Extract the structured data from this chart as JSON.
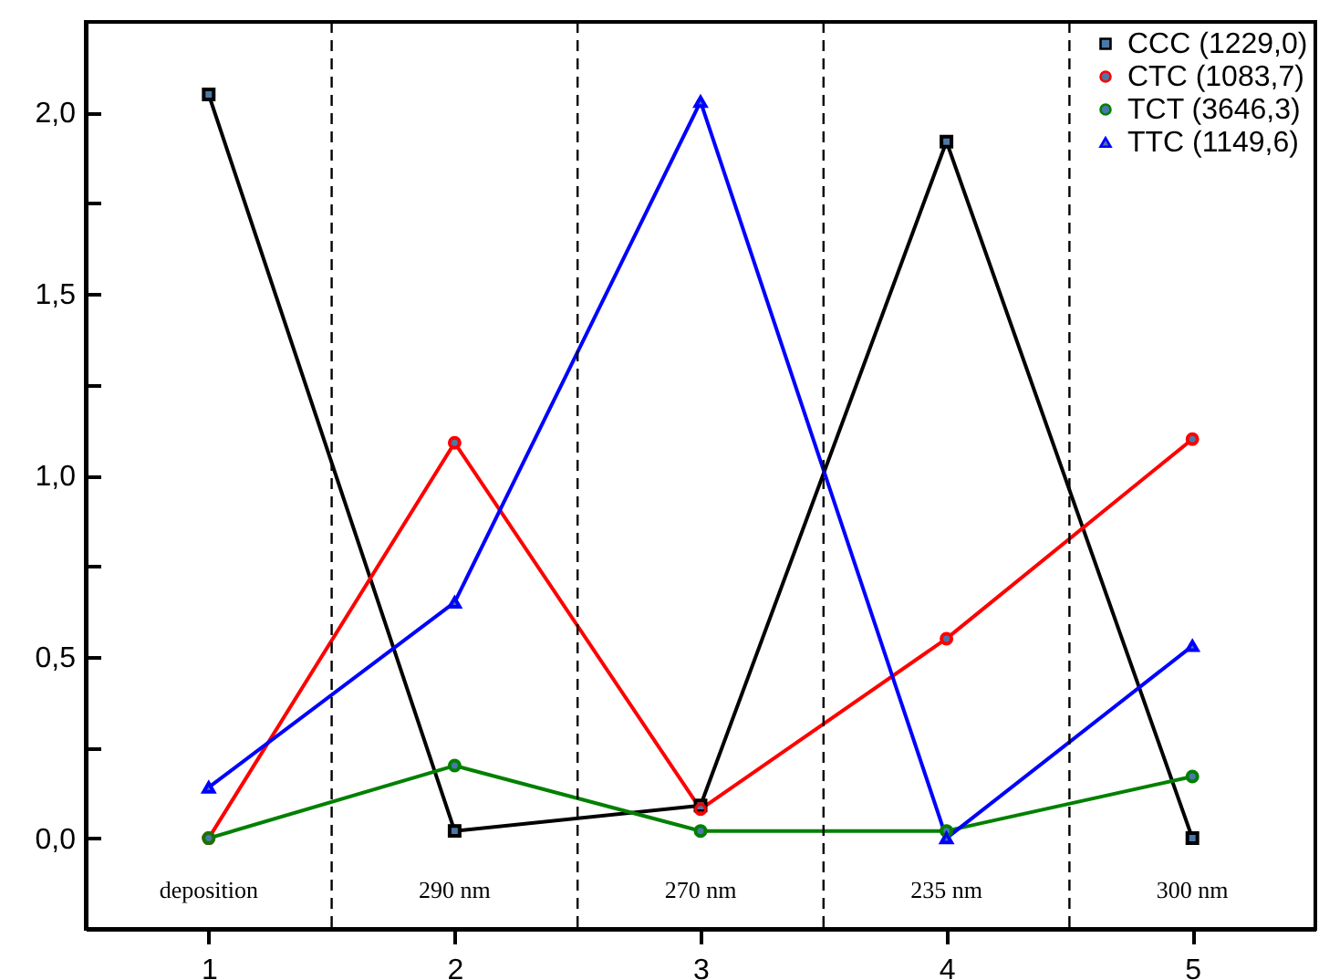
{
  "chart_data": {
    "type": "line",
    "x": [
      1,
      2,
      3,
      4,
      5
    ],
    "series": [
      {
        "name": "CCC (1229,0)",
        "color": "#000000",
        "marker": "square",
        "values": [
          2.05,
          0.02,
          0.09,
          1.92,
          0.0
        ]
      },
      {
        "name": "CTC (1083,7)",
        "color": "#ff0000",
        "marker": "circle",
        "values": [
          0.0,
          1.09,
          0.08,
          0.55,
          1.1
        ]
      },
      {
        "name": "TCT (3646,3)",
        "color": "#008000",
        "marker": "circle",
        "values": [
          0.0,
          0.2,
          0.02,
          0.02,
          0.17
        ]
      },
      {
        "name": "TTC (1149,6)",
        "color": "#0000ff",
        "marker": "triangle",
        "values": [
          0.14,
          0.65,
          2.03,
          0.0,
          0.53
        ]
      }
    ],
    "xlim": [
      0.5,
      5.5
    ],
    "xticks": [
      1,
      2,
      3,
      4,
      5
    ],
    "ylim": [
      -0.25,
      2.25
    ],
    "yticks": [
      {
        "value": 0,
        "label": "0,0"
      },
      {
        "value": 0.25,
        "label": null
      },
      {
        "value": 0.5,
        "label": "0,5"
      },
      {
        "value": 0.75,
        "label": null
      },
      {
        "value": 1,
        "label": "1,0"
      },
      {
        "value": 1.25,
        "label": null
      },
      {
        "value": 1.5,
        "label": "1,5"
      },
      {
        "value": 1.75,
        "label": null
      },
      {
        "value": 2,
        "label": "2,0"
      }
    ],
    "ref_lines": [
      {
        "axis": "x",
        "value": 1.5,
        "line_style": "dashed",
        "color": "#000000"
      },
      {
        "axis": "x",
        "value": 2.5,
        "line_style": "dashed",
        "color": "#000000"
      },
      {
        "axis": "x",
        "value": 3.5,
        "line_style": "dashed",
        "color": "#000000"
      },
      {
        "axis": "x",
        "value": 4.5,
        "line_style": "dashed",
        "color": "#000000"
      }
    ],
    "annotations": [
      "deposition",
      "290 nm",
      "270 nm",
      "235 nm",
      "300 nm"
    ],
    "grid": false,
    "legend": "top right",
    "line_style": "solid"
  }
}
